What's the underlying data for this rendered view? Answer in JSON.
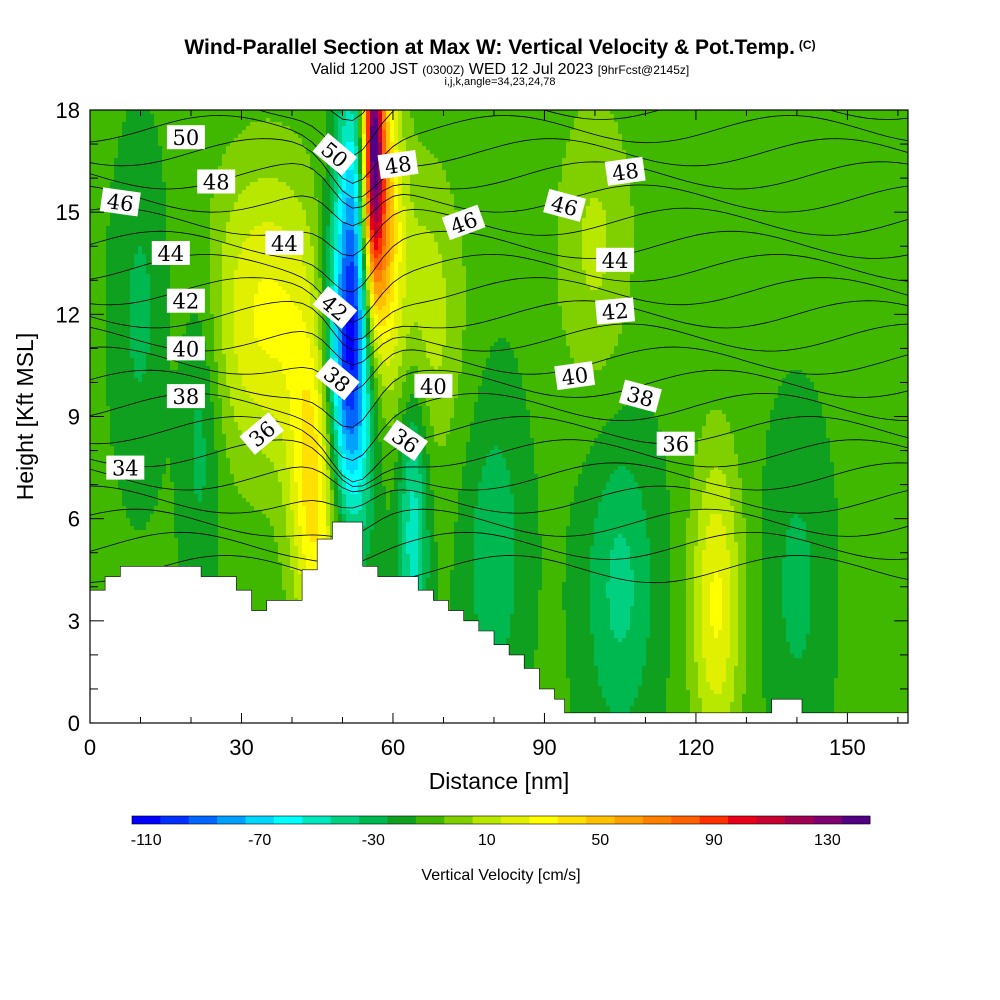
{
  "header": {
    "title": "Wind-Parallel Section at Max W: Vertical Velocity & Pot.Temp.",
    "copyright": "(C)",
    "valid_main": "Valid 1200 JST",
    "valid_utc": "(0300Z)",
    "valid_date": "WED 12 Jul 2023",
    "fcst": "[9hrFcst@2145z]",
    "indices": "i,j,k,angle=34,23,24,78"
  },
  "chart_data": {
    "type": "heatmap",
    "xlabel": "Distance [nm]",
    "ylabel": "Height [Kft MSL]",
    "xlim": [
      0,
      162
    ],
    "ylim": [
      0,
      18
    ],
    "x_ticks": [
      0,
      30,
      60,
      90,
      120,
      150
    ],
    "y_ticks": [
      0,
      3,
      6,
      9,
      12,
      15,
      18
    ],
    "colorbar": {
      "label": "Vertical Velocity [cm/s]",
      "levels": [
        -110,
        -100,
        -90,
        -80,
        -70,
        -60,
        -50,
        -40,
        -30,
        -20,
        -10,
        0,
        10,
        20,
        30,
        40,
        50,
        60,
        70,
        80,
        90,
        100,
        110,
        120,
        130,
        140
      ],
      "colors": [
        "#0000ff",
        "#0030ff",
        "#0066ff",
        "#00a0ff",
        "#00d8ff",
        "#00ffff",
        "#00e8c0",
        "#00d080",
        "#00b850",
        "#10a020",
        "#40b800",
        "#80d000",
        "#b8e800",
        "#e0f000",
        "#ffff00",
        "#ffe000",
        "#ffc000",
        "#ffa000",
        "#ff8000",
        "#ff6000",
        "#ff3000",
        "#e8001a",
        "#c80030",
        "#a00050",
        "#800070",
        "#500080"
      ],
      "tick_labels": [
        "-110",
        "-70",
        "-30",
        "10",
        "50",
        "90",
        "130"
      ]
    },
    "velocity_features": [
      {
        "x": 35,
        "y": 12,
        "width": 12,
        "value": 40
      },
      {
        "x": 45,
        "y": 7,
        "width": 5,
        "value": 60
      },
      {
        "x": 51,
        "y": 10,
        "width": 5,
        "value": -90
      },
      {
        "x": 53,
        "y": 15,
        "width": 4,
        "value": -70
      },
      {
        "x": 57,
        "y": 15,
        "width": 4,
        "value": 90
      },
      {
        "x": 56,
        "y": 17.5,
        "width": 2,
        "value": 120
      },
      {
        "x": 66,
        "y": 12,
        "width": 8,
        "value": 25
      },
      {
        "x": 64,
        "y": 6,
        "width": 3,
        "value": -40
      },
      {
        "x": 22,
        "y": 9,
        "width": 4,
        "value": -20
      },
      {
        "x": 10,
        "y": 12,
        "width": 5,
        "value": -15
      },
      {
        "x": 80,
        "y": 5,
        "width": 6,
        "value": -20
      },
      {
        "x": 105,
        "y": 4,
        "width": 7,
        "value": -25
      },
      {
        "x": 124,
        "y": 3.5,
        "width": 5,
        "value": 40
      },
      {
        "x": 140,
        "y": 4,
        "width": 6,
        "value": -15
      },
      {
        "x": 100,
        "y": 14,
        "width": 8,
        "value": 20
      }
    ],
    "theta_contours": {
      "step": 1,
      "labels": [
        {
          "text": "50",
          "x": 19,
          "y": 17.2,
          "angle": 0
        },
        {
          "text": "50",
          "x": 48.5,
          "y": 16.7,
          "angle": 40
        },
        {
          "text": "48",
          "x": 25,
          "y": 15.9,
          "angle": 0
        },
        {
          "text": "48",
          "x": 61,
          "y": 16.4,
          "angle": -8
        },
        {
          "text": "48",
          "x": 106,
          "y": 16.2,
          "angle": -8
        },
        {
          "text": "46",
          "x": 6,
          "y": 15.3,
          "angle": 8
        },
        {
          "text": "46",
          "x": 74,
          "y": 14.7,
          "angle": -20
        },
        {
          "text": "46",
          "x": 94,
          "y": 15.2,
          "angle": 15
        },
        {
          "text": "44",
          "x": 16,
          "y": 13.8,
          "angle": 0
        },
        {
          "text": "44",
          "x": 38.5,
          "y": 14.1,
          "angle": 0
        },
        {
          "text": "44",
          "x": 104,
          "y": 13.6,
          "angle": 0
        },
        {
          "text": "42",
          "x": 19,
          "y": 12.4,
          "angle": 0
        },
        {
          "text": "42",
          "x": 48.5,
          "y": 12.2,
          "angle": 40
        },
        {
          "text": "42",
          "x": 104,
          "y": 12.1,
          "angle": -5
        },
        {
          "text": "40",
          "x": 19,
          "y": 11.0,
          "angle": 0
        },
        {
          "text": "40",
          "x": 68,
          "y": 9.9,
          "angle": 0
        },
        {
          "text": "40",
          "x": 96,
          "y": 10.2,
          "angle": -8
        },
        {
          "text": "38",
          "x": 19,
          "y": 9.6,
          "angle": 0
        },
        {
          "text": "38",
          "x": 49,
          "y": 10.1,
          "angle": 40
        },
        {
          "text": "38",
          "x": 109,
          "y": 9.6,
          "angle": 15
        },
        {
          "text": "36",
          "x": 34,
          "y": 8.5,
          "angle": -40
        },
        {
          "text": "36",
          "x": 62.5,
          "y": 8.3,
          "angle": 35
        },
        {
          "text": "36",
          "x": 116,
          "y": 8.2,
          "angle": 0
        },
        {
          "text": "34",
          "x": 7,
          "y": 7.5,
          "angle": 0
        }
      ]
    },
    "terrain": [
      [
        0,
        3.9
      ],
      [
        3,
        3.9
      ],
      [
        3,
        4.3
      ],
      [
        6,
        4.3
      ],
      [
        6,
        4.6
      ],
      [
        22,
        4.6
      ],
      [
        22,
        4.3
      ],
      [
        29,
        4.3
      ],
      [
        29,
        3.9
      ],
      [
        32,
        3.9
      ],
      [
        32,
        3.3
      ],
      [
        35,
        3.3
      ],
      [
        35,
        3.6
      ],
      [
        42,
        3.6
      ],
      [
        42,
        4.5
      ],
      [
        45,
        4.5
      ],
      [
        45,
        5.4
      ],
      [
        48,
        5.4
      ],
      [
        48,
        5.9
      ],
      [
        54,
        5.9
      ],
      [
        54,
        4.6
      ],
      [
        57,
        4.6
      ],
      [
        57,
        4.3
      ],
      [
        65,
        4.3
      ],
      [
        65,
        3.9
      ],
      [
        68,
        3.9
      ],
      [
        68,
        3.6
      ],
      [
        71,
        3.6
      ],
      [
        71,
        3.3
      ],
      [
        74,
        3.3
      ],
      [
        74,
        3.0
      ],
      [
        77,
        3.0
      ],
      [
        77,
        2.7
      ],
      [
        80,
        2.7
      ],
      [
        80,
        2.3
      ],
      [
        83,
        2.3
      ],
      [
        83,
        2.0
      ],
      [
        86,
        2.0
      ],
      [
        86,
        1.6
      ],
      [
        89,
        1.6
      ],
      [
        89,
        1.0
      ],
      [
        92,
        1.0
      ],
      [
        92,
        0.7
      ],
      [
        94,
        0.7
      ],
      [
        94,
        0.3
      ],
      [
        135,
        0.3
      ],
      [
        135,
        0.7
      ],
      [
        141,
        0.7
      ],
      [
        141,
        0.3
      ],
      [
        162,
        0.3
      ]
    ]
  }
}
